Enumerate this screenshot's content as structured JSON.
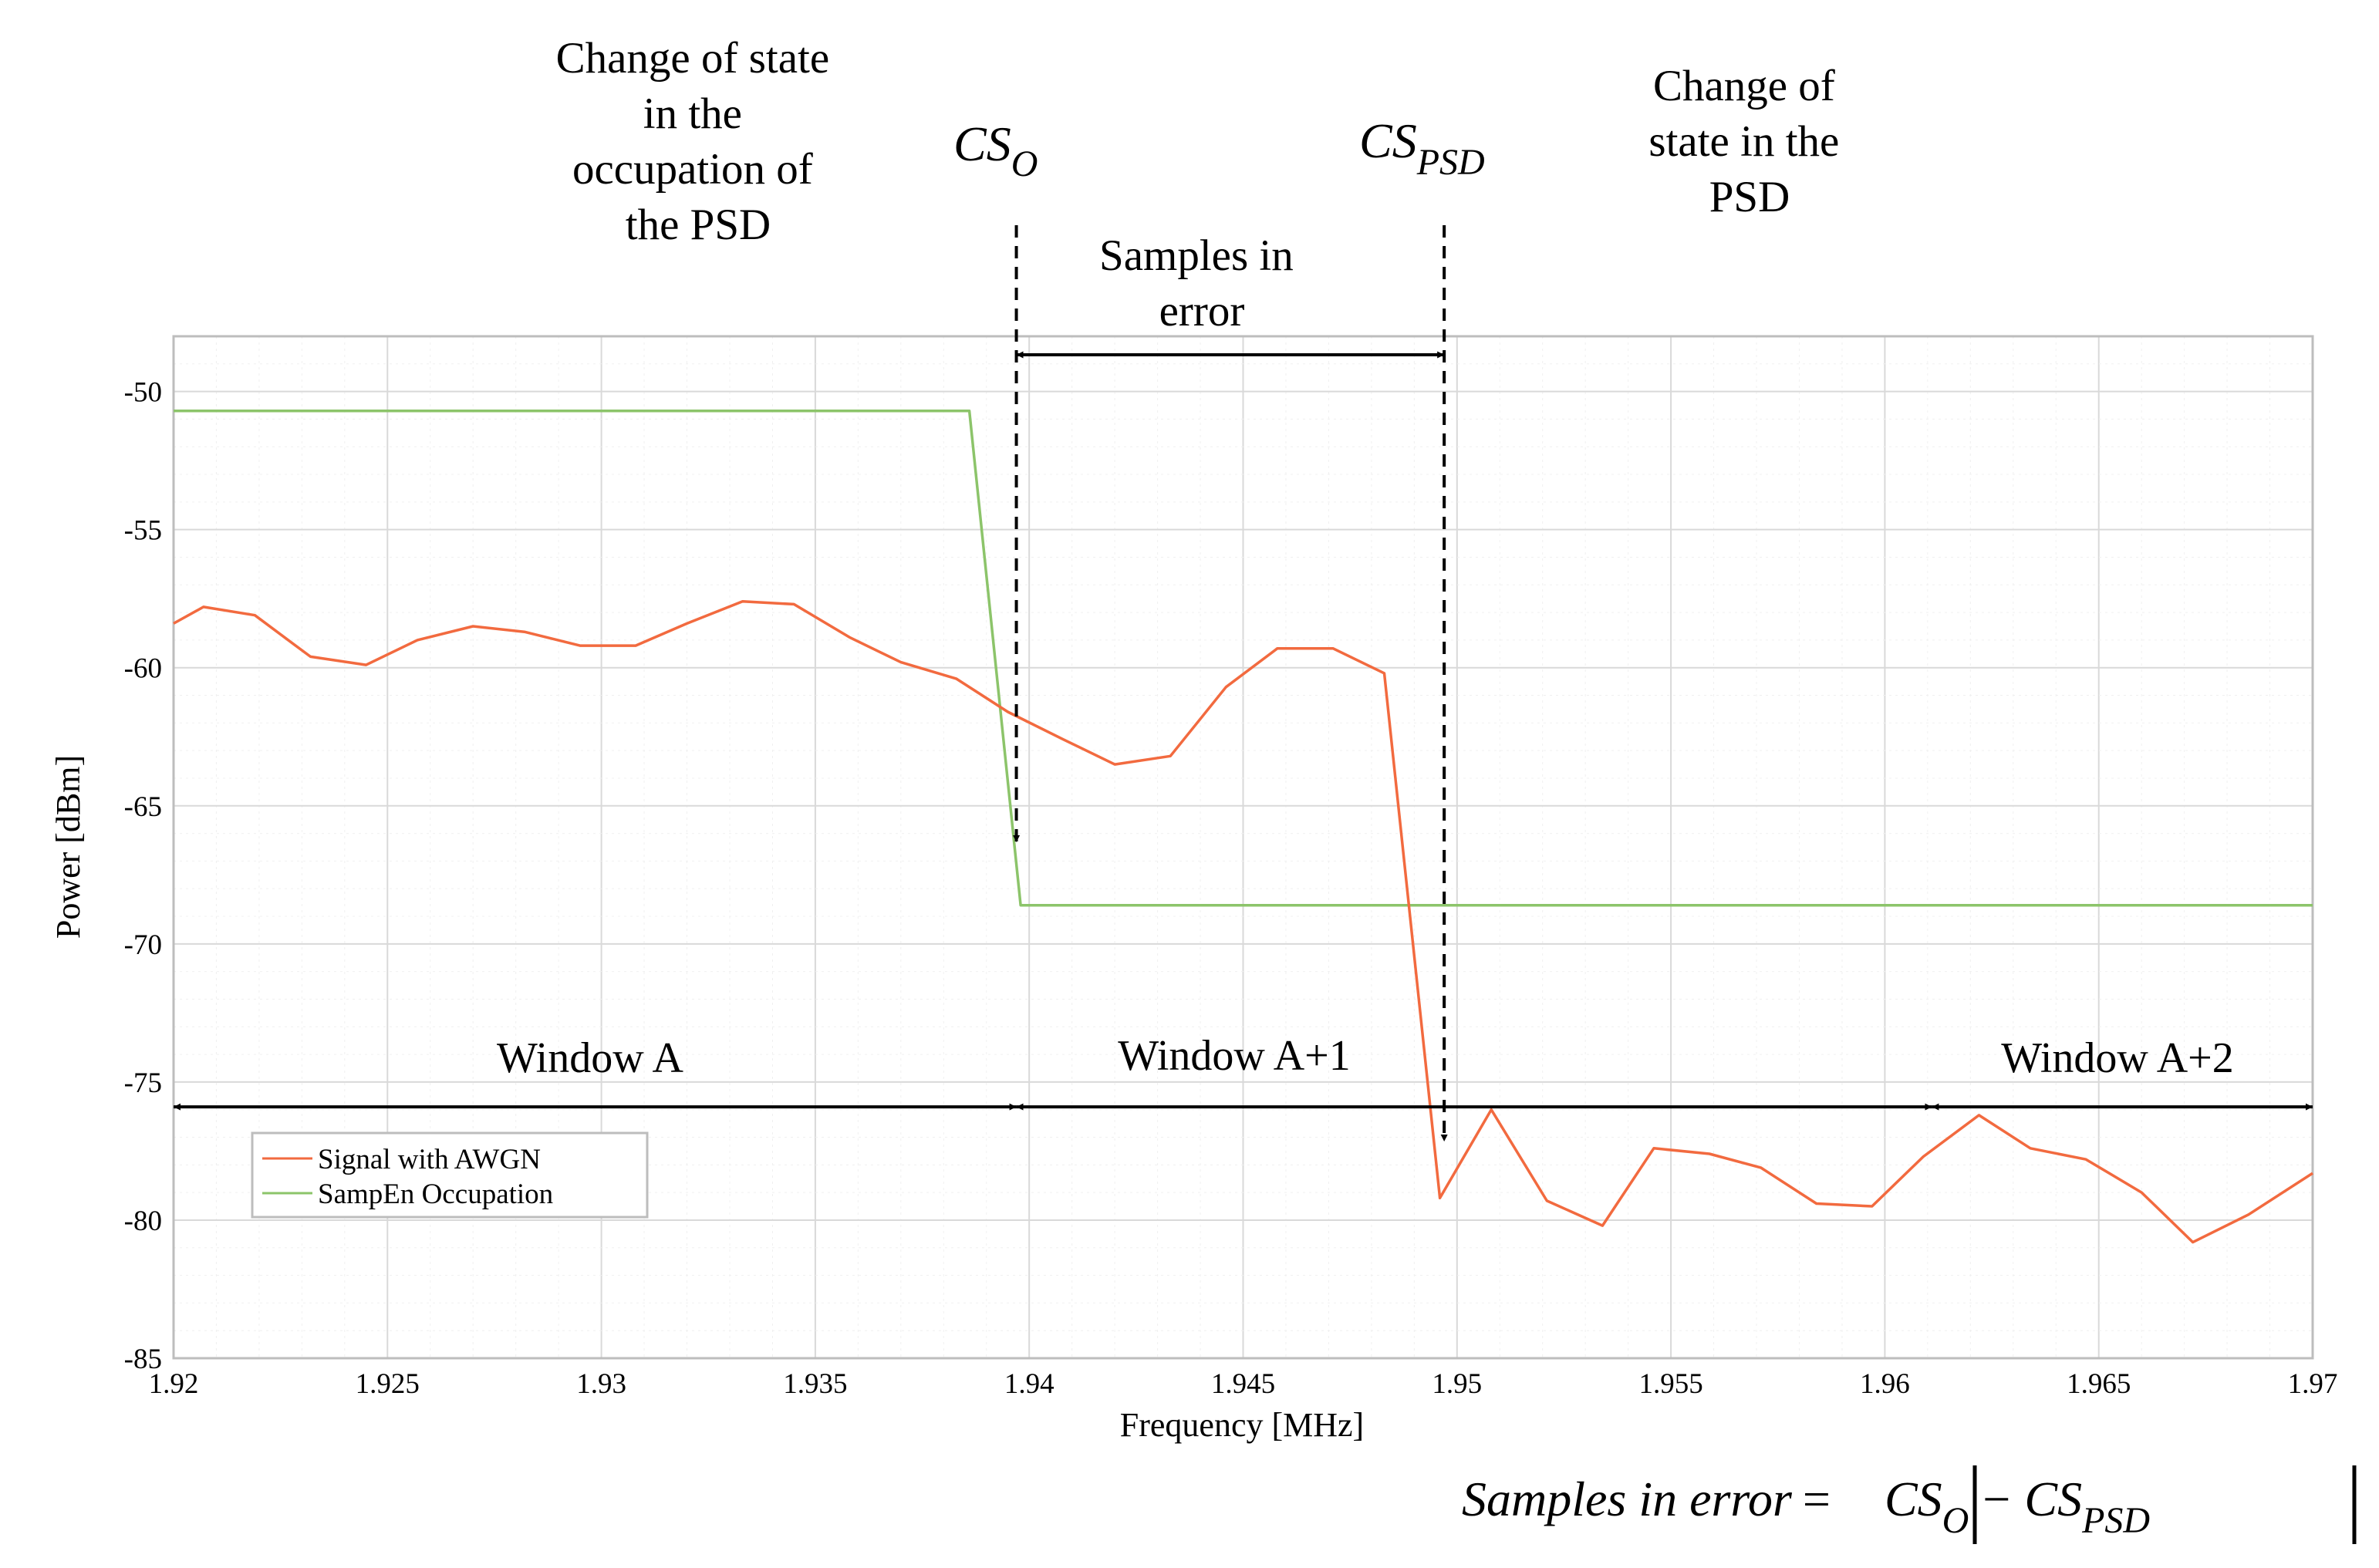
{
  "chart_data": {
    "type": "line",
    "xlabel": "Frequency [MHz]",
    "ylabel": "Power [dBm]",
    "xlim": [
      1.92,
      1.97
    ],
    "ylim": [
      -85,
      -48
    ],
    "grid": true,
    "xticks": [
      1.92,
      1.925,
      1.93,
      1.935,
      1.94,
      1.945,
      1.95,
      1.955,
      1.96,
      1.965,
      1.97
    ],
    "xtick_labels": [
      "1.92",
      "1.925",
      "1.93",
      "1.935",
      "1.94",
      "1.945",
      "1.95",
      "1.955",
      "1.96",
      "1.965",
      "1.97"
    ],
    "yticks": [
      -85,
      -80,
      -75,
      -70,
      -65,
      -60,
      -55,
      -50
    ],
    "ytick_labels": [
      "-85",
      "-80",
      "-75",
      "-70",
      "-65",
      "-60",
      "-55",
      "-50"
    ],
    "legend_position": "bottom-left",
    "series": [
      {
        "name": "Signal with AWGN",
        "color": "#f26a3f",
        "x": [
          1.92,
          1.9207,
          1.9219,
          1.9232,
          1.9245,
          1.9257,
          1.927,
          1.9282,
          1.9295,
          1.9308,
          1.932,
          1.9333,
          1.9345,
          1.9358,
          1.937,
          1.9383,
          1.9395,
          1.9408,
          1.942,
          1.9433,
          1.9446,
          1.9458,
          1.9471,
          1.9483,
          1.9496,
          1.9508,
          1.9521,
          1.9534,
          1.9546,
          1.9559,
          1.9571,
          1.9584,
          1.9597,
          1.9609,
          1.9622,
          1.9634,
          1.9647,
          1.966,
          1.9672,
          1.9685,
          1.97
        ],
        "y": [
          -58.4,
          -57.8,
          -58.1,
          -59.6,
          -59.9,
          -59.0,
          -58.5,
          -58.7,
          -59.2,
          -59.2,
          -58.4,
          -57.6,
          -57.7,
          -58.9,
          -59.8,
          -60.4,
          -61.6,
          -62.6,
          -63.5,
          -63.2,
          -60.7,
          -59.3,
          -59.3,
          -60.2,
          -79.2,
          -76.0,
          -79.3,
          -80.2,
          -77.4,
          -77.6,
          -78.1,
          -79.4,
          -79.5,
          -77.7,
          -76.2,
          -77.4,
          -77.8,
          -79.0,
          -80.8,
          -79.8,
          -78.3
        ]
      },
      {
        "name": "SampEn Occupation",
        "color": "#8cc46a",
        "x": [
          1.92,
          1.9386,
          1.9398,
          1.97
        ],
        "y": [
          -50.7,
          -50.7,
          -68.6,
          -68.6
        ]
      }
    ],
    "markers": [
      {
        "label": "CS",
        "subscript": "O",
        "x": 1.9397
      },
      {
        "label": "CS",
        "subscript": "PSD",
        "x": 1.9497
      }
    ],
    "annotations": [
      {
        "id": "state_occupation",
        "lines": [
          "Change of state",
          "in the",
          "occupation of",
          "the PSD"
        ]
      },
      {
        "id": "state_psd",
        "lines": [
          "Change of",
          "state in the",
          "PSD"
        ]
      },
      {
        "id": "samples_error",
        "lines": [
          "Samples in",
          "error"
        ]
      }
    ],
    "windows": [
      {
        "label": "Window A",
        "x_start": 1.92,
        "x_end": 1.9397
      },
      {
        "label": "Window A+1",
        "x_start": 1.9397,
        "x_end": 1.9611
      },
      {
        "label": "Window A+2",
        "x_start": 1.9611,
        "x_end": 1.97
      }
    ],
    "window_arrow_y": -75.9,
    "formula": {
      "lhs": "Samples in error",
      "eq": "=",
      "term1": "CS",
      "term1_sub": "O",
      "op": "−",
      "term2": "CS",
      "term2_sub": "PSD"
    }
  }
}
